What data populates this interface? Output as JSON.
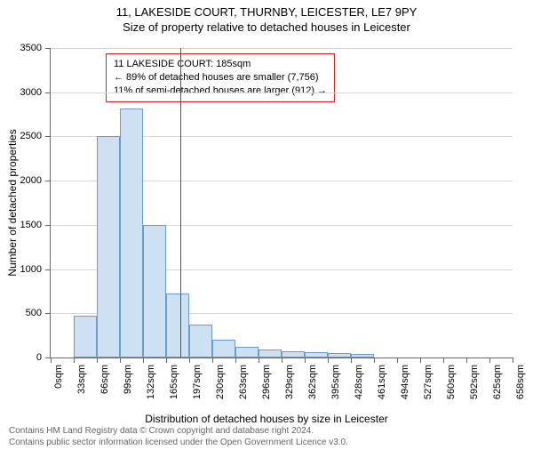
{
  "title": "11, LAKESIDE COURT, THURNBY, LEICESTER, LE7 9PY",
  "subtitle": "Size of property relative to detached houses in Leicester",
  "y_axis_title": "Number of detached properties",
  "x_axis_title": "Distribution of detached houses by size in Leicester",
  "chart": {
    "type": "histogram",
    "bar_fill": "#cee1f4",
    "bar_stroke": "#6a9bd1",
    "grid_color": "#d8d8d8",
    "axis_color": "#666666",
    "background": "#ffffff",
    "ylim": [
      0,
      3500
    ],
    "ytick_step": 500,
    "x_categories": [
      "0sqm",
      "33sqm",
      "66sqm",
      "99sqm",
      "132sqm",
      "165sqm",
      "197sqm",
      "230sqm",
      "263sqm",
      "296sqm",
      "329sqm",
      "362sqm",
      "395sqm",
      "428sqm",
      "461sqm",
      "494sqm",
      "527sqm",
      "560sqm",
      "592sqm",
      "625sqm",
      "658sqm"
    ],
    "values": [
      0,
      470,
      2500,
      2820,
      1500,
      720,
      370,
      200,
      120,
      90,
      70,
      60,
      50,
      40,
      0,
      0,
      0,
      0,
      0,
      0
    ],
    "marker_bin_index": 5,
    "marker_fraction_in_bin": 0.6,
    "marker_color": "#d62020"
  },
  "callout": {
    "line1": "11 LAKESIDE COURT: 185sqm",
    "line2": "← 89% of detached houses are smaller (7,756)",
    "line3": "11% of semi-detached houses are larger (912) →",
    "border_color": "#d62020"
  },
  "footer": {
    "line1": "Contains HM Land Registry data © Crown copyright and database right 2024.",
    "line2": "Contains public sector information licensed under the Open Government Licence v3.0."
  }
}
